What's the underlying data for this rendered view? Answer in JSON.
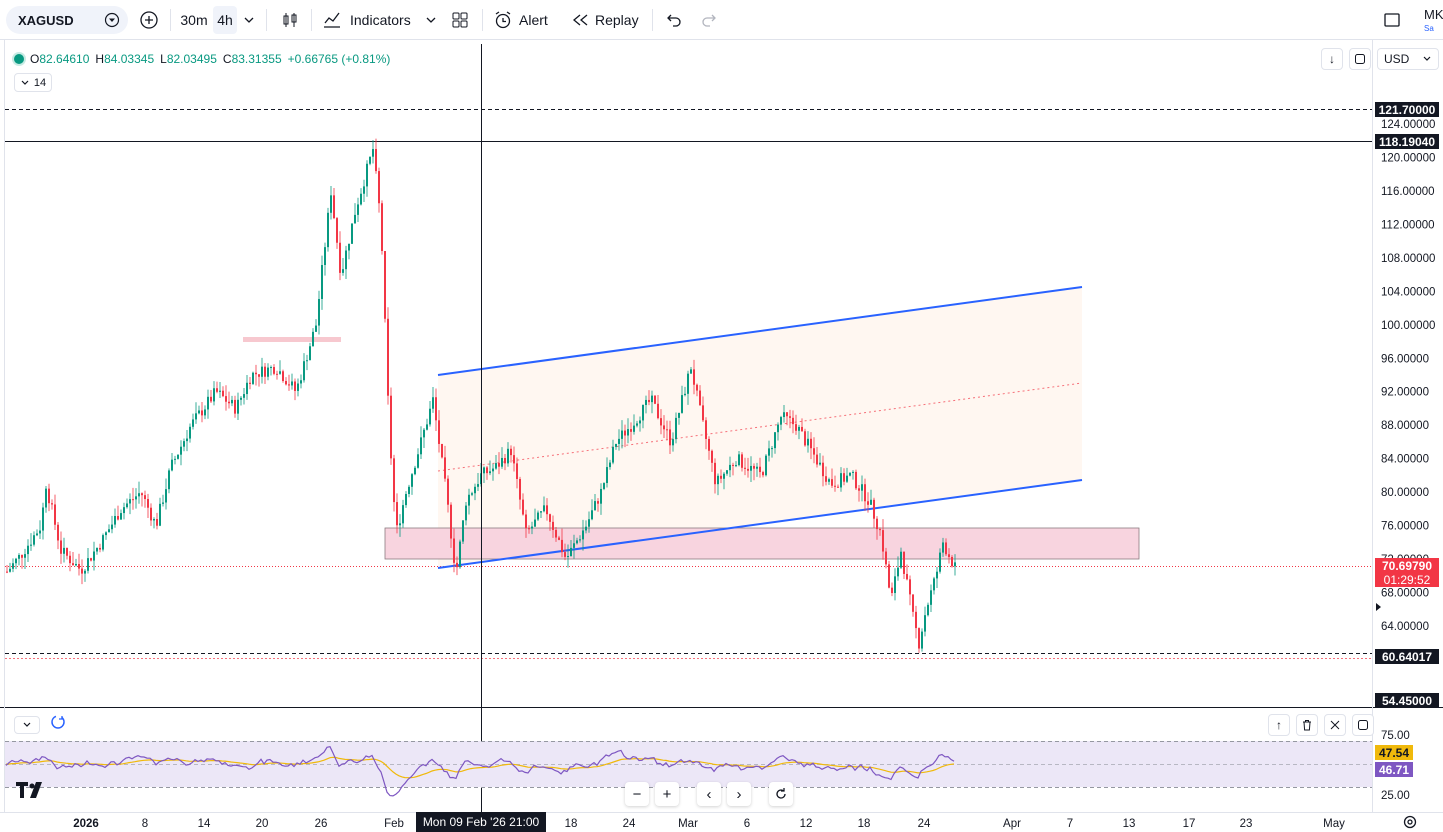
{
  "toolbar": {
    "symbol": "XAGUSD",
    "intervals": [
      "30m",
      "4h"
    ],
    "active_interval": "4h",
    "indicators_label": "Indicators",
    "alert_label": "Alert",
    "replay_label": "Replay",
    "account_initials": "MK",
    "account_sub": "Sa"
  },
  "legend": {
    "open_key": "O",
    "open": "82.64610",
    "high_key": "H",
    "high": "84.03345",
    "low_key": "L",
    "low": "82.03495",
    "close_key": "C",
    "close": "83.31355",
    "change": "+0.66765 (+0.81%)",
    "collapse_value": "14"
  },
  "currency": "USD",
  "price_axis": {
    "ticks": [
      "124.00000",
      "120.00000",
      "116.00000",
      "112.00000",
      "108.00000",
      "104.00000",
      "100.00000",
      "96.00000",
      "92.00000",
      "88.00000",
      "84.00000",
      "80.00000",
      "76.00000",
      "72.00000",
      "68.00000",
      "64.00000"
    ],
    "tick_values": [
      124,
      120,
      116,
      112,
      108,
      104,
      100,
      96,
      92,
      88,
      84,
      80,
      76,
      72,
      68,
      64
    ],
    "badges": {
      "level_high": "121.70000",
      "level_top": "118.19040",
      "current_price": "70.69790",
      "countdown": "01:29:52",
      "level_low": "60.64017",
      "level_bottom": "54.45000"
    }
  },
  "rsi_axis": {
    "ticks": [
      "75.00",
      "25.00"
    ],
    "badges": {
      "rsi_ma": "47.54",
      "rsi": "46.71"
    }
  },
  "time_axis": {
    "labels": [
      "2026",
      "8",
      "14",
      "20",
      "26",
      "Feb",
      "18",
      "24",
      "Mar",
      "6",
      "12",
      "18",
      "24",
      "Apr",
      "7",
      "13",
      "17",
      "23",
      "May"
    ],
    "crosshair": "Mon 09 Feb '26   21:00"
  },
  "colors": {
    "up": "#089981",
    "down": "#f23645",
    "channel_line": "#2962ff",
    "zone_fill": "#f8d4df",
    "rsi_line": "#7e57c2",
    "rsi_ma": "#f0b90b",
    "rsi_band": "#ece7f7"
  },
  "chart_data": {
    "type": "candlestick",
    "symbol": "XAGUSD",
    "interval": "4h",
    "horizontal_levels": [
      121.7,
      118.1904,
      60.64017,
      54.45
    ],
    "current_price": 70.6979,
    "price_range": [
      54,
      126
    ],
    "support_zone": [
      71.5,
      75
    ],
    "channel_upper": [
      [
        92.0,
        102.0
      ]
    ],
    "channel_lower": [
      [
        70.5,
        80.3
      ]
    ],
    "rsi": {
      "value": 46.71,
      "ma": 47.54,
      "upper": 75,
      "lower": 25
    },
    "ohlc_last_hovered": {
      "open": 82.6461,
      "high": 84.03345,
      "low": 82.03495,
      "close": 83.31355
    }
  }
}
